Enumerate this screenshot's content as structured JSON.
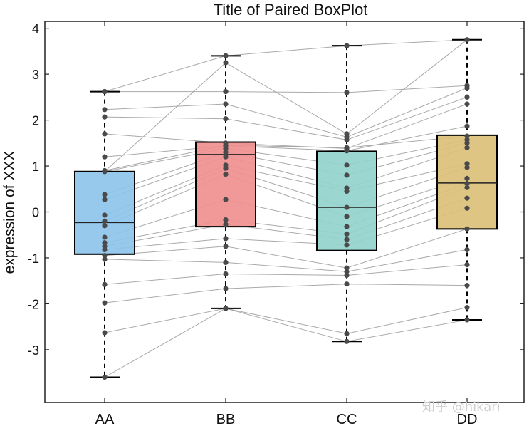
{
  "chart_data": {
    "type": "box",
    "title": "Title of Paired BoxPlot",
    "xlabel": "",
    "ylabel": "expression of XXX",
    "categories": [
      "AA",
      "BB",
      "CC",
      "DD"
    ],
    "ylim": [
      -4.15,
      4.15
    ],
    "yticks": [
      -3,
      -2,
      -1,
      0,
      1,
      2,
      3,
      4
    ],
    "ytick_labels": [
      "-3",
      "-2",
      "-1",
      "0",
      "1",
      "2",
      "3",
      "4"
    ],
    "grid": false,
    "paired_lines": true,
    "box_colors": [
      "#8ec4ec",
      "#f0908f",
      "#93d4cc",
      "#dcc07a"
    ],
    "box_stats": [
      {
        "whisker_low": -3.6,
        "q1": -0.92,
        "median": -0.23,
        "q3": 0.88,
        "whisker_high": 2.62
      },
      {
        "whisker_low": -2.1,
        "q1": -0.32,
        "median": 1.25,
        "q3": 1.52,
        "whisker_high": 3.4
      },
      {
        "whisker_low": -2.82,
        "q1": -0.84,
        "median": 0.1,
        "q3": 1.32,
        "whisker_high": 3.62
      },
      {
        "whisker_low": -2.35,
        "q1": -0.37,
        "median": 0.63,
        "q3": 1.67,
        "whisker_high": 3.75
      }
    ],
    "paired_values": [
      [
        -3.6,
        -2.1,
        -2.82,
        -2.35
      ],
      [
        -2.63,
        -2.1,
        -2.65,
        -2.08
      ],
      [
        -1.98,
        -1.67,
        -1.57,
        -1.6
      ],
      [
        -1.58,
        -1.35,
        -1.38,
        -1.15
      ],
      [
        -1.03,
        -1.1,
        -1.3,
        -0.82
      ],
      [
        -0.95,
        -0.75,
        -1.22,
        -0.37
      ],
      [
        -0.82,
        -0.58,
        -0.72,
        0.08
      ],
      [
        -0.75,
        -0.27,
        -0.6,
        0.3
      ],
      [
        -0.67,
        -0.17,
        -0.48,
        0.53
      ],
      [
        -0.55,
        0.27,
        -0.32,
        0.62
      ],
      [
        -0.3,
        0.82,
        -0.1,
        0.73
      ],
      [
        -0.2,
        0.95,
        0.1,
        0.97
      ],
      [
        -0.07,
        1.02,
        0.45,
        1.05
      ],
      [
        0.27,
        1.2,
        0.52,
        1.4
      ],
      [
        0.38,
        1.3,
        0.8,
        1.5
      ],
      [
        0.88,
        1.38,
        1.02,
        1.57
      ],
      [
        1.2,
        1.44,
        1.33,
        1.87
      ],
      [
        1.7,
        1.5,
        1.38,
        2.35
      ],
      [
        2.07,
        2.03,
        1.57,
        2.5
      ],
      [
        2.23,
        2.35,
        1.63,
        2.7
      ],
      [
        2.62,
        2.62,
        2.6,
        2.75
      ],
      [
        0.88,
        3.25,
        1.7,
        3.75
      ],
      [
        2.62,
        3.4,
        3.62,
        3.75
      ],
      [
        0.9,
        1.45,
        1.4,
        1.65
      ]
    ],
    "colors": {
      "box_edge": "#000000",
      "point": "#4a4a4a",
      "paired_line": "#9a9a9a",
      "whisker": "#000000"
    }
  },
  "watermark": "知乎 @hikari"
}
